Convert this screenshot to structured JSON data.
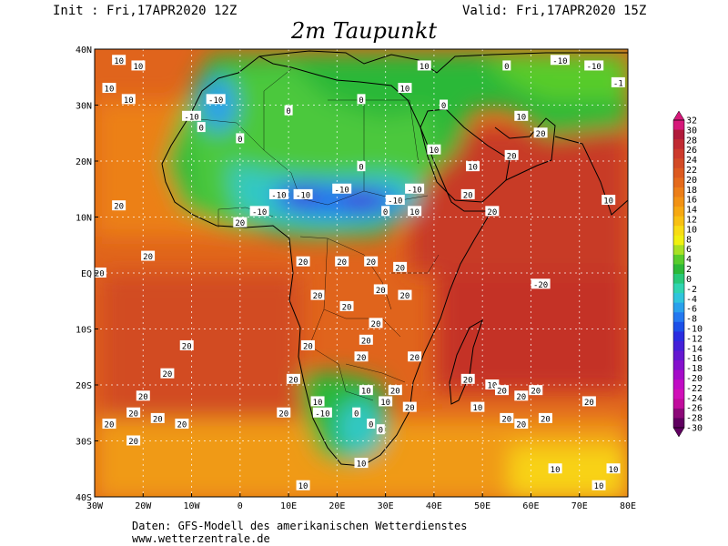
{
  "header": {
    "init": "Init : Fri,17APR2020 12Z",
    "valid": "Valid: Fri,17APR2020 15Z",
    "title": "2m Taupunkt"
  },
  "map": {
    "lon_range": [
      -30,
      80
    ],
    "lat_range": [
      -40,
      40
    ],
    "lat_ticks": [
      {
        "value": 40,
        "label": "40N"
      },
      {
        "value": 30,
        "label": "30N"
      },
      {
        "value": 20,
        "label": "20N"
      },
      {
        "value": 10,
        "label": "10N"
      },
      {
        "value": 0,
        "label": "EQ"
      },
      {
        "value": -10,
        "label": "10S"
      },
      {
        "value": -20,
        "label": "20S"
      },
      {
        "value": -30,
        "label": "30S"
      },
      {
        "value": -40,
        "label": "40S"
      }
    ],
    "lon_ticks": [
      {
        "value": -30,
        "label": "30W"
      },
      {
        "value": -20,
        "label": "20W"
      },
      {
        "value": -10,
        "label": "10W"
      },
      {
        "value": 0,
        "label": "0"
      },
      {
        "value": 10,
        "label": "10E"
      },
      {
        "value": 20,
        "label": "20E"
      },
      {
        "value": 30,
        "label": "30E"
      },
      {
        "value": 40,
        "label": "40E"
      },
      {
        "value": 50,
        "label": "50E"
      },
      {
        "value": 60,
        "label": "60E"
      },
      {
        "value": 70,
        "label": "70E"
      },
      {
        "value": 80,
        "label": "80E"
      }
    ],
    "contour_labels": [
      {
        "lon": -25,
        "lat": 38,
        "text": "10"
      },
      {
        "lon": -21,
        "lat": 37,
        "text": "10"
      },
      {
        "lon": -27,
        "lat": 33,
        "text": "10"
      },
      {
        "lon": -23,
        "lat": 31,
        "text": "10"
      },
      {
        "lon": -10,
        "lat": 28,
        "text": "-10"
      },
      {
        "lon": -8,
        "lat": 26,
        "text": "0"
      },
      {
        "lon": -5,
        "lat": 31,
        "text": "-10"
      },
      {
        "lon": 0,
        "lat": 24,
        "text": "0"
      },
      {
        "lon": 10,
        "lat": 29,
        "text": "0"
      },
      {
        "lon": 25,
        "lat": 31,
        "text": "0"
      },
      {
        "lon": 34,
        "lat": 33,
        "text": "10"
      },
      {
        "lon": 38,
        "lat": 37,
        "text": "10"
      },
      {
        "lon": 55,
        "lat": 37,
        "text": "0"
      },
      {
        "lon": 66,
        "lat": 38,
        "text": "-10"
      },
      {
        "lon": 73,
        "lat": 37,
        "text": "-10"
      },
      {
        "lon": 78,
        "lat": 34,
        "text": "-1"
      },
      {
        "lon": 42,
        "lat": 30,
        "text": "0"
      },
      {
        "lon": 58,
        "lat": 28,
        "text": "10"
      },
      {
        "lon": 62,
        "lat": 25,
        "text": "20"
      },
      {
        "lon": 40,
        "lat": 22,
        "text": "10"
      },
      {
        "lon": 48,
        "lat": 19,
        "text": "10"
      },
      {
        "lon": 56,
        "lat": 21,
        "text": "20"
      },
      {
        "lon": 8,
        "lat": 14,
        "text": "-10"
      },
      {
        "lon": 13,
        "lat": 14,
        "text": "-10"
      },
      {
        "lon": 21,
        "lat": 15,
        "text": "-10"
      },
      {
        "lon": 32,
        "lat": 13,
        "text": "-10"
      },
      {
        "lon": 36,
        "lat": 15,
        "text": "-10"
      },
      {
        "lon": 4,
        "lat": 11,
        "text": "-10"
      },
      {
        "lon": 25,
        "lat": 19,
        "text": "0"
      },
      {
        "lon": 30,
        "lat": 11,
        "text": "0"
      },
      {
        "lon": 36,
        "lat": 11,
        "text": "10"
      },
      {
        "lon": 47,
        "lat": 14,
        "text": "20"
      },
      {
        "lon": 52,
        "lat": 11,
        "text": "20"
      },
      {
        "lon": 0,
        "lat": 9,
        "text": "20"
      },
      {
        "lon": -25,
        "lat": 12,
        "text": "20"
      },
      {
        "lon": -19,
        "lat": 3,
        "text": "20"
      },
      {
        "lon": -29,
        "lat": 0,
        "text": "20"
      },
      {
        "lon": 13,
        "lat": 2,
        "text": "20"
      },
      {
        "lon": 21,
        "lat": 2,
        "text": "20"
      },
      {
        "lon": 27,
        "lat": 2,
        "text": "20"
      },
      {
        "lon": 33,
        "lat": 1,
        "text": "20"
      },
      {
        "lon": 29,
        "lat": -3,
        "text": "20"
      },
      {
        "lon": 34,
        "lat": -4,
        "text": "20"
      },
      {
        "lon": 16,
        "lat": -4,
        "text": "20"
      },
      {
        "lon": 22,
        "lat": -6,
        "text": "20"
      },
      {
        "lon": 28,
        "lat": -9,
        "text": "20"
      },
      {
        "lon": 14,
        "lat": -13,
        "text": "20"
      },
      {
        "lon": 26,
        "lat": -12,
        "text": "20"
      },
      {
        "lon": 25,
        "lat": -15,
        "text": "20"
      },
      {
        "lon": 36,
        "lat": -15,
        "text": "20"
      },
      {
        "lon": 62,
        "lat": -2,
        "text": "-20"
      },
      {
        "lon": -11,
        "lat": -13,
        "text": "20"
      },
      {
        "lon": -15,
        "lat": -18,
        "text": "20"
      },
      {
        "lon": 11,
        "lat": -19,
        "text": "20"
      },
      {
        "lon": 9,
        "lat": -25,
        "text": "20"
      },
      {
        "lon": -20,
        "lat": -22,
        "text": "20"
      },
      {
        "lon": -22,
        "lat": -25,
        "text": "20"
      },
      {
        "lon": -17,
        "lat": -26,
        "text": "20"
      },
      {
        "lon": -27,
        "lat": -27,
        "text": "20"
      },
      {
        "lon": -12,
        "lat": -27,
        "text": "20"
      },
      {
        "lon": -22,
        "lat": -30,
        "text": "20"
      },
      {
        "lon": 16,
        "lat": -23,
        "text": "10"
      },
      {
        "lon": 17,
        "lat": -25,
        "text": "-10"
      },
      {
        "lon": 27,
        "lat": -27,
        "text": "0"
      },
      {
        "lon": 29,
        "lat": -28,
        "text": "0"
      },
      {
        "lon": 24,
        "lat": -25,
        "text": "0"
      },
      {
        "lon": 26,
        "lat": -21,
        "text": "10"
      },
      {
        "lon": 30,
        "lat": -23,
        "text": "10"
      },
      {
        "lon": 32,
        "lat": -21,
        "text": "20"
      },
      {
        "lon": 35,
        "lat": -24,
        "text": "20"
      },
      {
        "lon": 47,
        "lat": -19,
        "text": "20"
      },
      {
        "lon": 52,
        "lat": -20,
        "text": "10"
      },
      {
        "lon": 54,
        "lat": -21,
        "text": "20"
      },
      {
        "lon": 58,
        "lat": -22,
        "text": "20"
      },
      {
        "lon": 61,
        "lat": -21,
        "text": "20"
      },
      {
        "lon": 49,
        "lat": -24,
        "text": "10"
      },
      {
        "lon": 55,
        "lat": -26,
        "text": "20"
      },
      {
        "lon": 58,
        "lat": -27,
        "text": "20"
      },
      {
        "lon": 63,
        "lat": -26,
        "text": "20"
      },
      {
        "lon": 72,
        "lat": -23,
        "text": "20"
      },
      {
        "lon": 25,
        "lat": -34,
        "text": "10"
      },
      {
        "lon": 13,
        "lat": -38,
        "text": "10"
      },
      {
        "lon": 65,
        "lat": -35,
        "text": "10"
      },
      {
        "lon": 77,
        "lat": -35,
        "text": "10"
      },
      {
        "lon": 74,
        "lat": -38,
        "text": "10"
      },
      {
        "lon": 76,
        "lat": 13,
        "text": "10"
      }
    ]
  },
  "colorbar": {
    "ticks": [
      "32",
      "30",
      "28",
      "26",
      "24",
      "22",
      "20",
      "18",
      "16",
      "14",
      "12",
      "10",
      "8",
      "6",
      "4",
      "2",
      "0",
      "-2",
      "-4",
      "-6",
      "-8",
      "-10",
      "-12",
      "-14",
      "-16",
      "-18",
      "-20",
      "-22",
      "-24",
      "-26",
      "-28",
      "-30"
    ],
    "colors": [
      "#d6187a",
      "#b01a3a",
      "#c02a32",
      "#cc3a2c",
      "#d24a26",
      "#dc5a20",
      "#e46a1c",
      "#ec7e18",
      "#f29214",
      "#f6a812",
      "#f8c012",
      "#f8dc14",
      "#f0f010",
      "#a8e024",
      "#58cc2c",
      "#2cb838",
      "#28c878",
      "#30d4b0",
      "#30c4dc",
      "#2aa0ec",
      "#2478f0",
      "#1c50e8",
      "#2a2ce0",
      "#4420d8",
      "#6418d0",
      "#8410cc",
      "#a40cc8",
      "#c00cc4",
      "#d010b8",
      "#c00c9c",
      "#8c0878",
      "#600060"
    ]
  },
  "credits": {
    "line1": "Daten: GFS-Modell des amerikanischen Wetterdienstes",
    "line2": "www.wetterzentrale.de"
  }
}
